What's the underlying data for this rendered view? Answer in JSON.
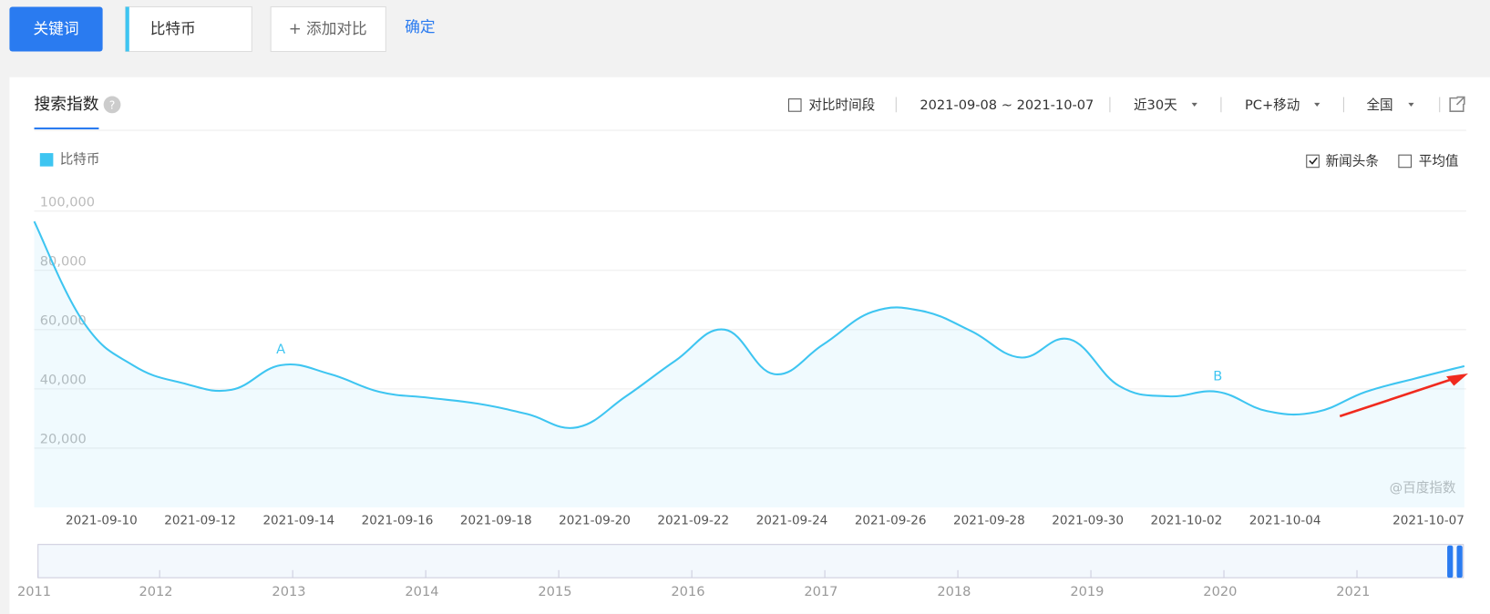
{
  "toolbar": {
    "keyword_button": "关键词",
    "keyword": "比特币",
    "add_compare": "+ 添加对比",
    "confirm": "确定"
  },
  "panel": {
    "tab": "搜索指数",
    "help_icon": "?",
    "compare_period": "对比时间段",
    "date_range": "2021-09-08 ~ 2021-10-07",
    "period": "近30天",
    "device": "PC+移动",
    "region": "全国",
    "news_option": "新闻头条",
    "average_option": "平均值",
    "watermark": "@百度指数"
  },
  "chart_data": {
    "type": "line",
    "x": [
      "2021-09-08",
      "2021-09-09",
      "2021-09-10",
      "2021-09-11",
      "2021-09-12",
      "2021-09-13",
      "2021-09-14",
      "2021-09-15",
      "2021-09-16",
      "2021-09-17",
      "2021-09-18",
      "2021-09-19",
      "2021-09-20",
      "2021-09-21",
      "2021-09-22",
      "2021-09-23",
      "2021-09-24",
      "2021-09-25",
      "2021-09-26",
      "2021-09-27",
      "2021-09-28",
      "2021-09-29",
      "2021-09-30",
      "2021-10-01",
      "2021-10-02",
      "2021-10-03",
      "2021-10-04",
      "2021-10-05",
      "2021-10-06",
      "2021-10-07"
    ],
    "xticks": [
      "2021-09-10",
      "2021-09-12",
      "2021-09-14",
      "2021-09-16",
      "2021-09-18",
      "2021-09-20",
      "2021-09-22",
      "2021-09-24",
      "2021-09-26",
      "2021-09-28",
      "2021-09-30",
      "2021-10-02",
      "2021-10-04",
      "2021-10-07"
    ],
    "series": [
      {
        "name": "比特币",
        "color": "#3ec5f1",
        "values": [
          96500,
          62500,
          48000,
          42000,
          39700,
          48000,
          45000,
          39000,
          37000,
          35000,
          31500,
          27000,
          37500,
          49500,
          60000,
          45000,
          55000,
          66000,
          66300,
          59500,
          50600,
          56700,
          41000,
          37500,
          39000,
          32500,
          32200,
          39000,
          43500,
          47700
        ]
      }
    ],
    "ylim": [
      0,
      100000
    ],
    "yticks": [
      {
        "value": 20000,
        "label": "20,000"
      },
      {
        "value": 40000,
        "label": "40,000"
      },
      {
        "value": 60000,
        "label": "60,000"
      },
      {
        "value": 80000,
        "label": "80,000"
      },
      {
        "value": 100000,
        "label": "100,000"
      }
    ],
    "grid": true,
    "annotations": [
      {
        "label": "A",
        "x": "2021-09-13"
      },
      {
        "label": "B",
        "x": "2021-10-02"
      }
    ],
    "navigator": {
      "labels": [
        "2011",
        "2012",
        "2013",
        "2014",
        "2015",
        "2016",
        "2017",
        "2018",
        "2019",
        "2020",
        "2021"
      ]
    }
  }
}
